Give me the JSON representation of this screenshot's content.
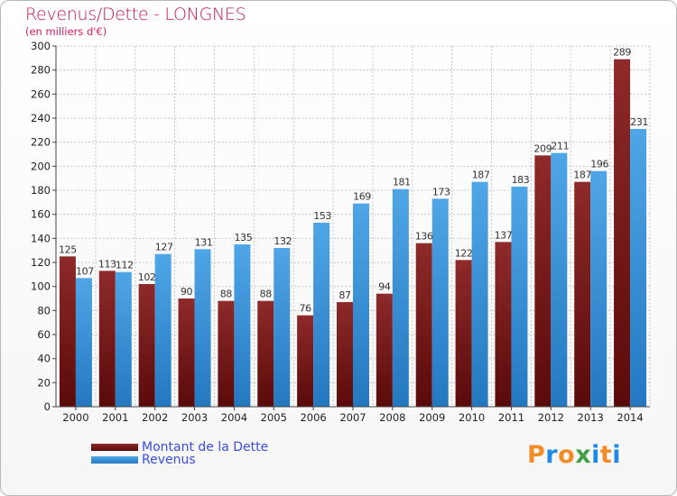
{
  "title": "Revenus/Dette - LONGNES",
  "subtitle": "(en milliers d'€)",
  "logo_letters": [
    {
      "ch": "P",
      "color": "#f28c28"
    },
    {
      "ch": "r",
      "color": "#1e88e5"
    },
    {
      "ch": "o",
      "color": "#f28c28"
    },
    {
      "ch": "x",
      "color": "#43a047"
    },
    {
      "ch": "i",
      "color": "#1e88e5"
    },
    {
      "ch": "t",
      "color": "#f28c28"
    },
    {
      "ch": "i",
      "color": "#1e88e5"
    }
  ],
  "colors": {
    "dette_top": "#8e2a2a",
    "dette_bottom": "#5a0a0a",
    "revenus_top": "#4fa6e6",
    "revenus_bottom": "#2478c0"
  },
  "chart_data": {
    "type": "bar",
    "categories": [
      "2000",
      "2001",
      "2002",
      "2003",
      "2004",
      "2005",
      "2006",
      "2007",
      "2008",
      "2009",
      "2010",
      "2011",
      "2012",
      "2013",
      "2014"
    ],
    "series": [
      {
        "name": "Montant de la Dette",
        "values": [
          125,
          113,
          102,
          90,
          88,
          88,
          76,
          87,
          94,
          136,
          122,
          137,
          209,
          187,
          289
        ]
      },
      {
        "name": "Revenus",
        "values": [
          107,
          112,
          127,
          131,
          135,
          132,
          153,
          169,
          181,
          173,
          187,
          183,
          211,
          196,
          231
        ]
      }
    ],
    "ylim": [
      0,
      300
    ],
    "yticks": [
      0,
      20,
      40,
      60,
      80,
      100,
      120,
      140,
      160,
      180,
      200,
      220,
      240,
      260,
      280,
      300
    ],
    "grid": true,
    "legend": "bottom-left"
  }
}
